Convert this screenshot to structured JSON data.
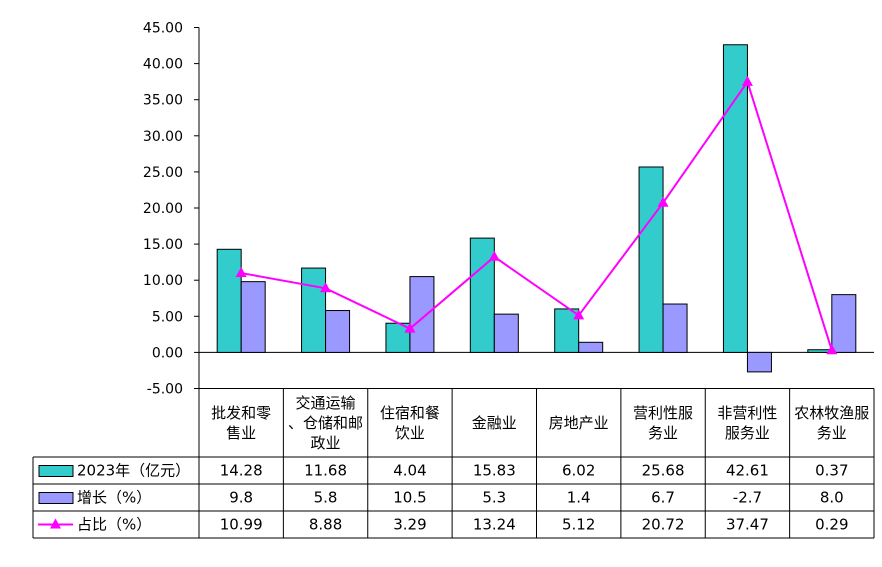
{
  "chart_data": {
    "type": "bar",
    "categories": [
      [
        "批发和零",
        "售业"
      ],
      [
        "交通运输",
        "、仓储和邮",
        "政业"
      ],
      [
        "住宿和餐",
        "饮业"
      ],
      [
        "金融业"
      ],
      [
        "房地产业"
      ],
      [
        "营利性服",
        "务业"
      ],
      [
        "非营利性",
        "服务业"
      ],
      [
        "农林牧渔服",
        "务业"
      ]
    ],
    "ylim": [
      -5,
      45
    ],
    "yticks": [
      "45.00",
      "40.00",
      "35.00",
      "30.00",
      "25.00",
      "20.00",
      "15.00",
      "10.00",
      "5.00",
      "0.00",
      "-5.00"
    ],
    "grid": false,
    "legend": "data-table",
    "series": [
      {
        "name": "2023年（亿元）",
        "kind": "bar",
        "color": "#33cccc",
        "values": [
          14.28,
          11.68,
          4.04,
          15.83,
          6.02,
          25.68,
          42.61,
          0.37
        ],
        "labels": [
          "14.28",
          "11.68",
          "4.04",
          "15.83",
          "6.02",
          "25.68",
          "42.61",
          "0.37"
        ]
      },
      {
        "name": "增长（%）",
        "kind": "bar",
        "color": "#9999ff",
        "values": [
          9.8,
          5.8,
          10.5,
          5.3,
          1.4,
          6.7,
          -2.7,
          8.0
        ],
        "labels": [
          "9.8",
          "5.8",
          "10.5",
          "5.3",
          "1.4",
          "6.7",
          "-2.7",
          "8.0"
        ]
      },
      {
        "name": "占比（%）",
        "kind": "line",
        "color": "#ff00ff",
        "values": [
          10.99,
          8.88,
          3.29,
          13.24,
          5.12,
          20.72,
          37.47,
          0.29
        ],
        "labels": [
          "10.99",
          "8.88",
          "3.29",
          "13.24",
          "5.12",
          "20.72",
          "37.47",
          "0.29"
        ]
      }
    ]
  }
}
